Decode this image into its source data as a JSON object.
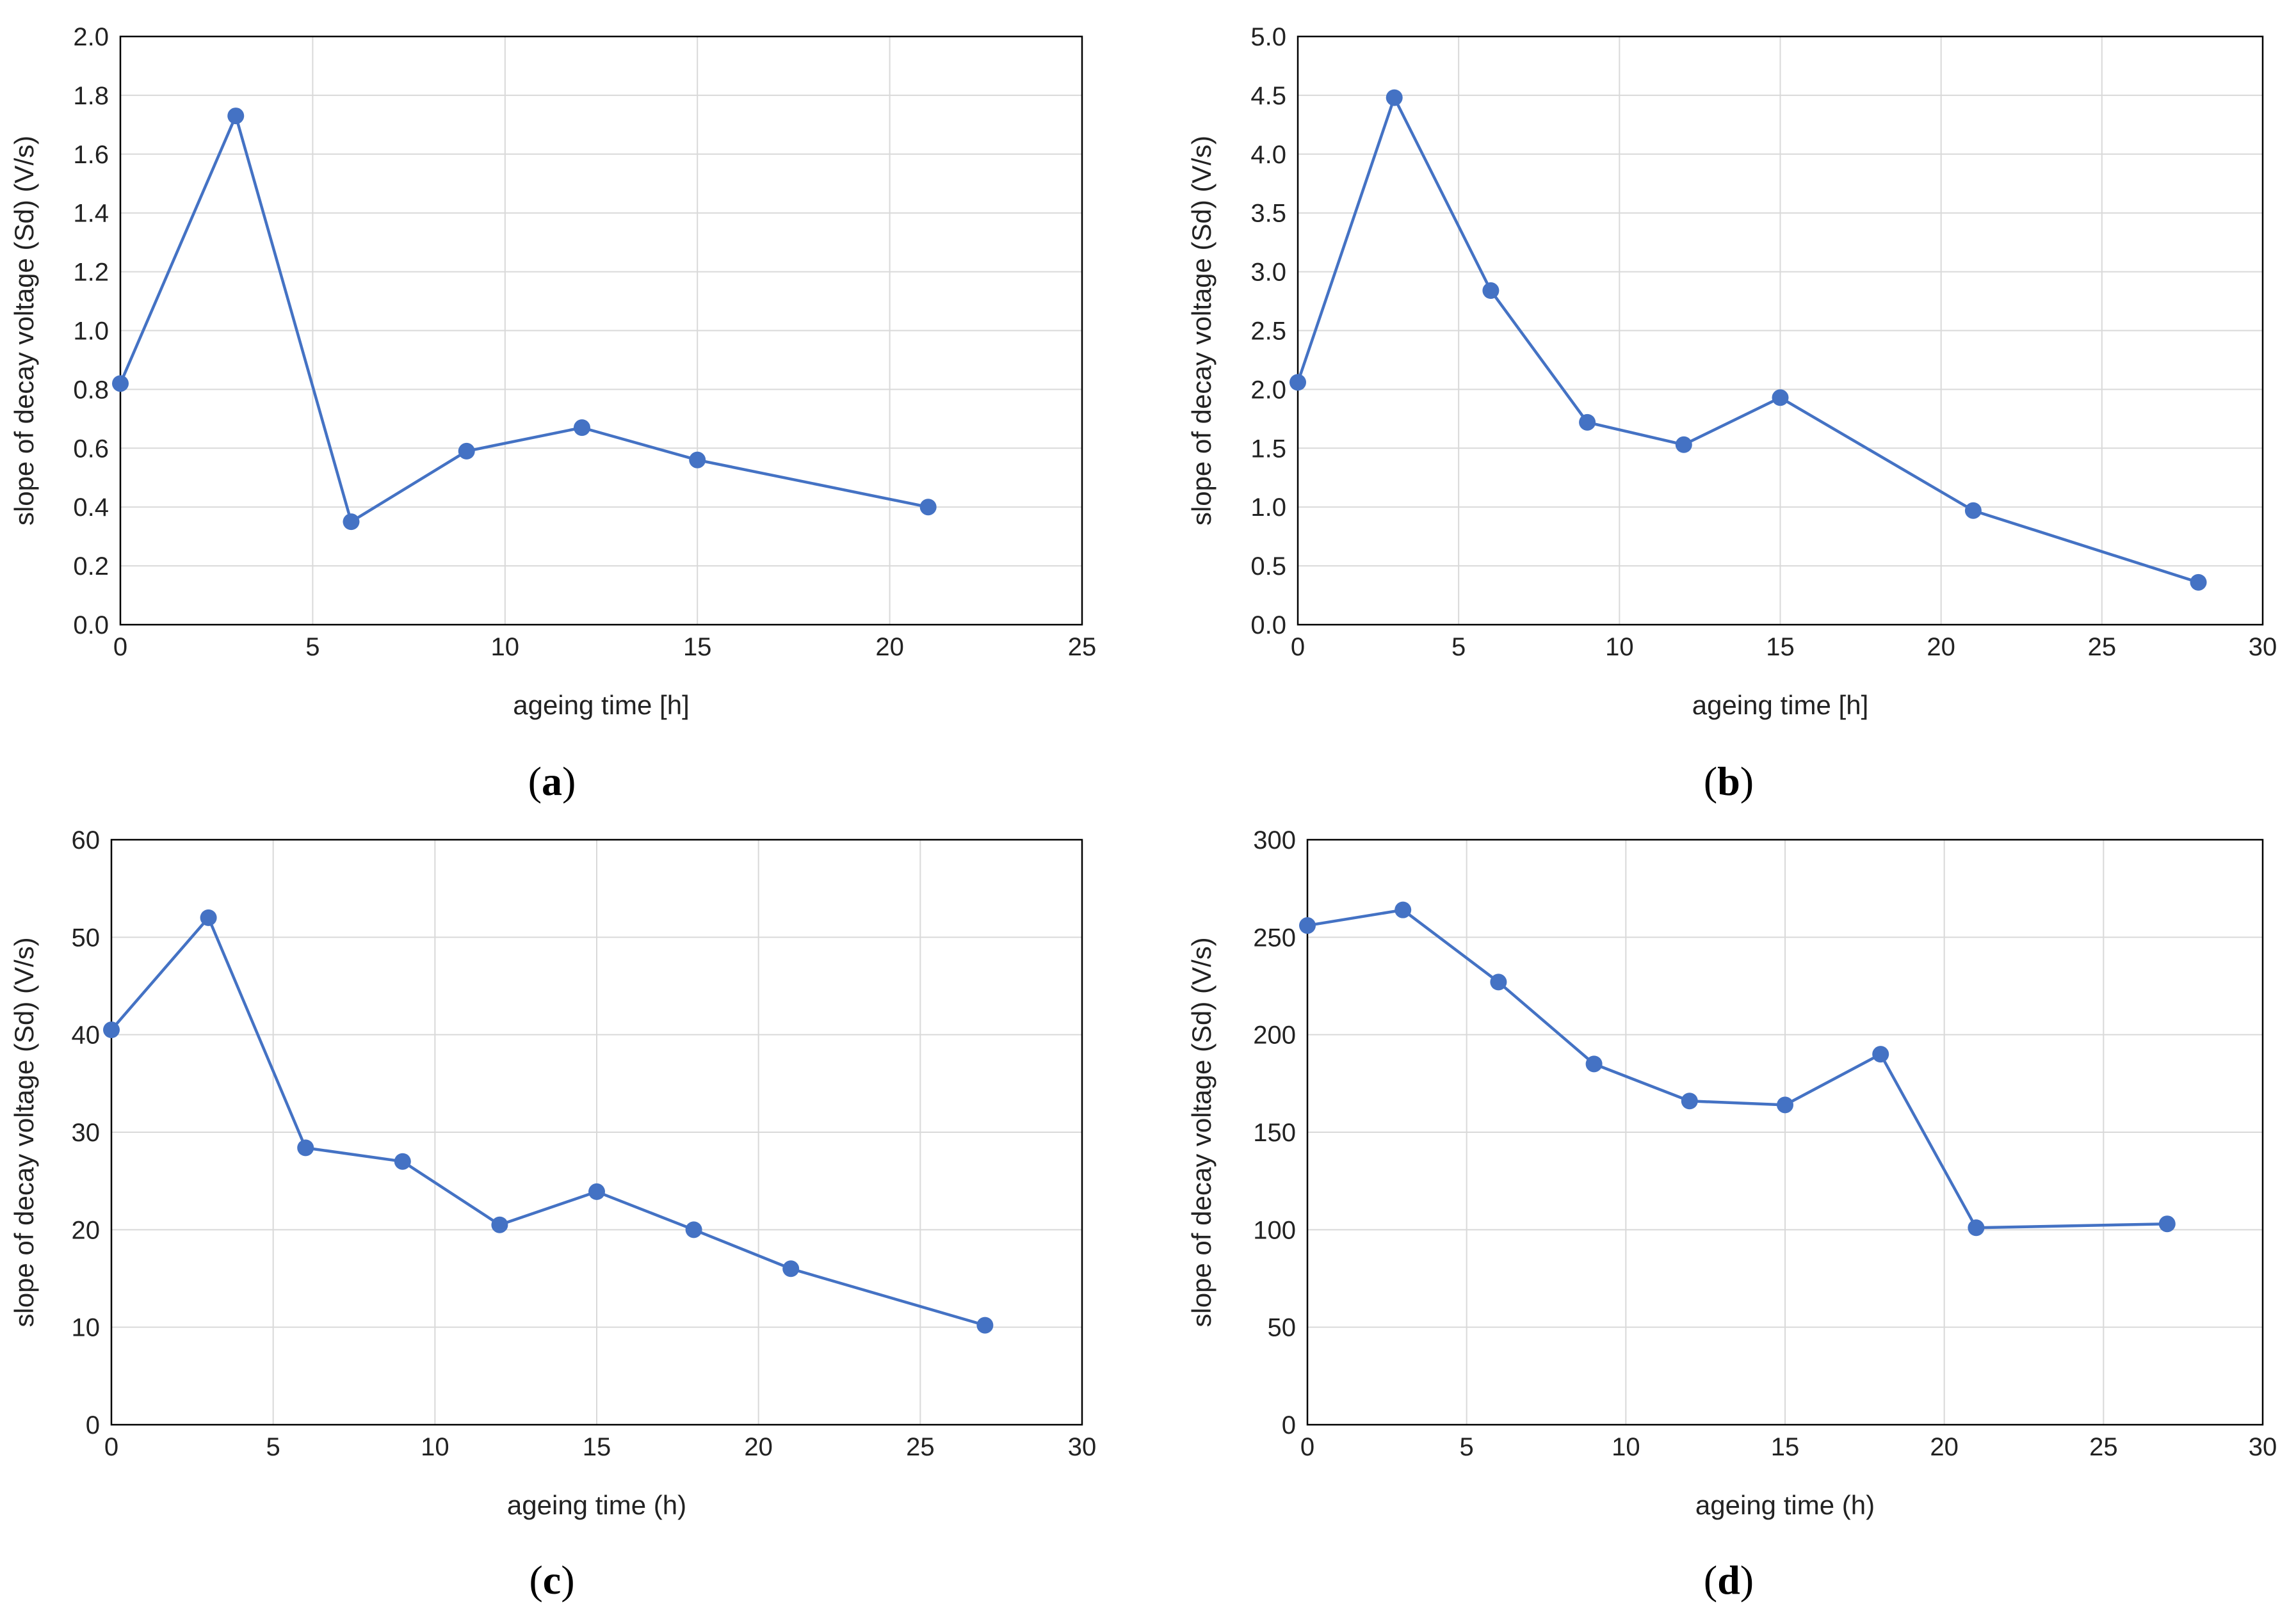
{
  "chart_data": [
    {
      "id": "a",
      "type": "line",
      "caption": "a",
      "xlabel": "ageing time [h]",
      "ylabel": "slope of decay voltage (Sd) (V/s)",
      "xlim": [
        0,
        25
      ],
      "ylim": [
        0,
        2.0
      ],
      "xticks": [
        "0",
        "5",
        "10",
        "15",
        "20",
        "25"
      ],
      "yticks": [
        "0.0",
        "0.2",
        "0.4",
        "0.6",
        "0.8",
        "1.0",
        "1.2",
        "1.4",
        "1.6",
        "1.8",
        "2.0"
      ],
      "x": [
        0,
        3,
        6,
        9,
        12,
        15,
        21
      ],
      "y": [
        0.82,
        1.73,
        0.35,
        0.59,
        0.67,
        0.56,
        0.4
      ],
      "grid": true,
      "color": "#4472C4"
    },
    {
      "id": "b",
      "type": "line",
      "caption": "b",
      "xlabel": "ageing time [h]",
      "ylabel": "slope of decay voltage (Sd) (V/s)",
      "xlim": [
        0,
        30
      ],
      "ylim": [
        0,
        5.0
      ],
      "xticks": [
        "0",
        "5",
        "10",
        "15",
        "20",
        "25",
        "30"
      ],
      "yticks": [
        "0.0",
        "0.5",
        "1.0",
        "1.5",
        "2.0",
        "2.5",
        "3.0",
        "3.5",
        "4.0",
        "4.5",
        "5.0"
      ],
      "x": [
        0,
        3,
        6,
        9,
        12,
        15,
        21,
        28
      ],
      "y": [
        2.06,
        4.48,
        2.84,
        1.72,
        1.53,
        1.93,
        0.97,
        0.36
      ],
      "grid": true,
      "color": "#4472C4"
    },
    {
      "id": "c",
      "type": "line",
      "caption": "c",
      "xlabel": "ageing time (h)",
      "ylabel": "slope of decay voltage (Sd) (V/s)",
      "xlim": [
        0,
        30
      ],
      "ylim": [
        0,
        60
      ],
      "xticks": [
        "0",
        "5",
        "10",
        "15",
        "20",
        "25",
        "30"
      ],
      "yticks": [
        "0",
        "10",
        "20",
        "30",
        "40",
        "50",
        "60"
      ],
      "x": [
        0,
        3,
        6,
        9,
        12,
        15,
        18,
        21,
        27
      ],
      "y": [
        40.5,
        52,
        28.4,
        27,
        20.5,
        23.9,
        20,
        16,
        10.2
      ],
      "grid": true,
      "color": "#4472C4"
    },
    {
      "id": "d",
      "type": "line",
      "caption": "d",
      "xlabel": "ageing time (h)",
      "ylabel": "slope of decay voltage (Sd) (V/s)",
      "xlim": [
        0,
        30
      ],
      "ylim": [
        0,
        300
      ],
      "xticks": [
        "0",
        "5",
        "10",
        "15",
        "20",
        "25",
        "30"
      ],
      "yticks": [
        "0",
        "50",
        "100",
        "150",
        "200",
        "250",
        "300"
      ],
      "x": [
        0,
        3,
        6,
        9,
        12,
        15,
        18,
        21,
        27
      ],
      "y": [
        256,
        264,
        227,
        185,
        166,
        164,
        190,
        101,
        103
      ],
      "grid": true,
      "color": "#4472C4"
    }
  ]
}
